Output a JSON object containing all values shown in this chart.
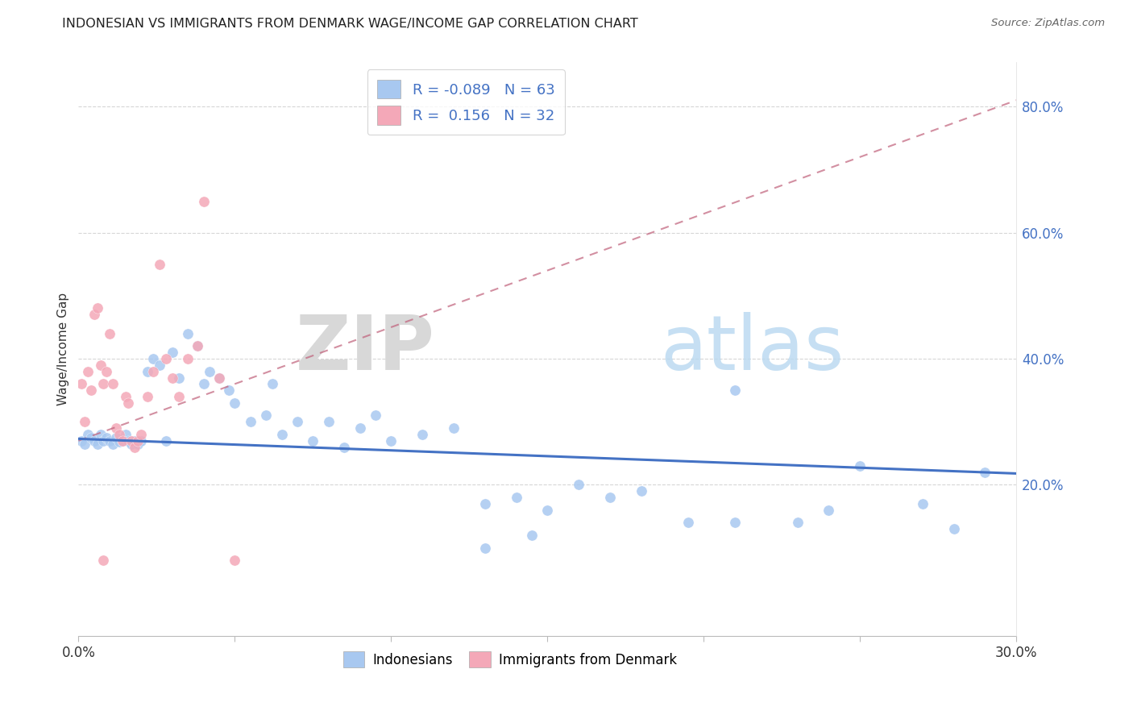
{
  "title": "INDONESIAN VS IMMIGRANTS FROM DENMARK WAGE/INCOME GAP CORRELATION CHART",
  "source": "Source: ZipAtlas.com",
  "ylabel": "Wage/Income Gap",
  "y_ticks": [
    0.2,
    0.4,
    0.6,
    0.8
  ],
  "y_tick_labels": [
    "20.0%",
    "40.0%",
    "60.0%",
    "80.0%"
  ],
  "xlim": [
    0.0,
    0.3
  ],
  "ylim": [
    -0.04,
    0.87
  ],
  "indonesian_R": "-0.089",
  "indonesian_N": "63",
  "denmark_R": "0.156",
  "denmark_N": "32",
  "indonesian_color": "#a8c8f0",
  "denmark_color": "#f4a8b8",
  "trend_indonesian_color": "#4472c4",
  "trend_denmark_color": "#c0607a",
  "watermark_zip": "ZIP",
  "watermark_atlas": "atlas",
  "indonesian_scatter_x": [
    0.001,
    0.002,
    0.003,
    0.004,
    0.005,
    0.006,
    0.007,
    0.008,
    0.009,
    0.01,
    0.011,
    0.012,
    0.013,
    0.014,
    0.015,
    0.016,
    0.017,
    0.018,
    0.019,
    0.02,
    0.022,
    0.024,
    0.026,
    0.028,
    0.03,
    0.032,
    0.035,
    0.038,
    0.04,
    0.042,
    0.045,
    0.048,
    0.05,
    0.055,
    0.06,
    0.062,
    0.065,
    0.07,
    0.075,
    0.08,
    0.085,
    0.09,
    0.095,
    0.1,
    0.11,
    0.12,
    0.13,
    0.14,
    0.15,
    0.16,
    0.17,
    0.18,
    0.195,
    0.21,
    0.23,
    0.25,
    0.27,
    0.29,
    0.21,
    0.24,
    0.13,
    0.145,
    0.28
  ],
  "indonesian_scatter_y": [
    0.27,
    0.265,
    0.28,
    0.275,
    0.27,
    0.265,
    0.28,
    0.27,
    0.275,
    0.27,
    0.265,
    0.275,
    0.268,
    0.27,
    0.28,
    0.27,
    0.265,
    0.27,
    0.265,
    0.27,
    0.38,
    0.4,
    0.39,
    0.27,
    0.41,
    0.37,
    0.44,
    0.42,
    0.36,
    0.38,
    0.37,
    0.35,
    0.33,
    0.3,
    0.31,
    0.36,
    0.28,
    0.3,
    0.27,
    0.3,
    0.26,
    0.29,
    0.31,
    0.27,
    0.28,
    0.29,
    0.17,
    0.18,
    0.16,
    0.2,
    0.18,
    0.19,
    0.14,
    0.14,
    0.14,
    0.23,
    0.17,
    0.22,
    0.35,
    0.16,
    0.1,
    0.12,
    0.13
  ],
  "denmark_scatter_x": [
    0.001,
    0.002,
    0.003,
    0.004,
    0.005,
    0.006,
    0.007,
    0.008,
    0.009,
    0.01,
    0.011,
    0.012,
    0.013,
    0.014,
    0.015,
    0.016,
    0.017,
    0.018,
    0.019,
    0.02,
    0.022,
    0.024,
    0.026,
    0.028,
    0.03,
    0.032,
    0.035,
    0.038,
    0.04,
    0.045,
    0.05,
    0.008
  ],
  "denmark_scatter_y": [
    0.36,
    0.3,
    0.38,
    0.35,
    0.47,
    0.48,
    0.39,
    0.36,
    0.38,
    0.44,
    0.36,
    0.29,
    0.28,
    0.27,
    0.34,
    0.33,
    0.27,
    0.26,
    0.27,
    0.28,
    0.34,
    0.38,
    0.55,
    0.4,
    0.37,
    0.34,
    0.4,
    0.42,
    0.65,
    0.37,
    0.08,
    0.08
  ],
  "ind_trend_x0": 0.0,
  "ind_trend_y0": 0.273,
  "ind_trend_x1": 0.3,
  "ind_trend_y1": 0.218,
  "den_trend_x0": 0.0,
  "den_trend_y0": 0.27,
  "den_trend_x1": 0.3,
  "den_trend_y1": 0.81
}
